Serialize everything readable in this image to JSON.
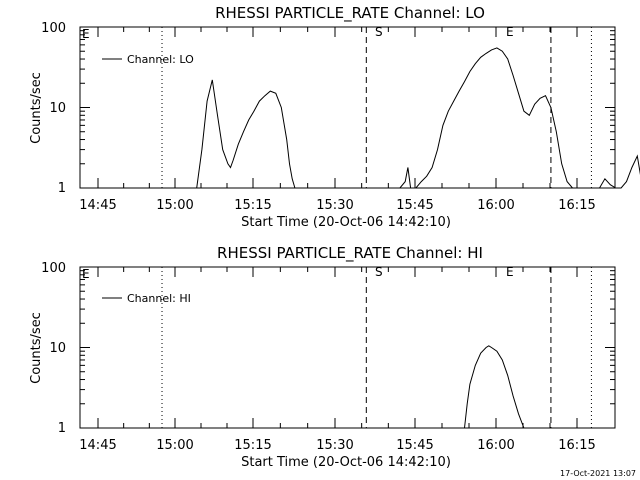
{
  "footer": {
    "timestamp": "17-Oct-2021 13:07"
  },
  "chart_data": [
    {
      "type": "line",
      "title": "RHESSI PARTICLE_RATE Channel: LO",
      "xlabel": "Start Time (20-Oct-06 14:42:10)",
      "ylabel": "Counts/sec",
      "yscale": "log",
      "ylim": [
        1,
        100
      ],
      "xlim_minutes": [
        -2.17,
        113
      ],
      "x_ticks": [
        "14:45",
        "15:00",
        "15:15",
        "15:30",
        "15:45",
        "16:00",
        "16:15"
      ],
      "y_ticks": [
        "1",
        "10",
        "100"
      ],
      "legend": {
        "position": "top-left",
        "entries": [
          "Channel: LO"
        ]
      },
      "markers": [
        {
          "label": "E",
          "minute": -2.17,
          "style": "dotted"
        },
        {
          "label": "",
          "minute": 15.3,
          "style": "dotted"
        },
        {
          "label": "S",
          "minute": 53.7,
          "style": "dashed"
        },
        {
          "label": "",
          "minute": 88,
          "style": "dashed"
        },
        {
          "label": "E",
          "minute": 95.5,
          "style": "dotted"
        },
        {
          "label": "",
          "minute": 116,
          "style": "dotted"
        }
      ],
      "series": [
        {
          "name": "Channel: LO",
          "x": [
            22.0,
            23.0,
            24.0,
            25.0,
            26.0,
            27.0,
            28.0,
            28.5,
            29.0,
            30.0,
            31.0,
            32.0,
            33.0,
            34.0,
            35.0,
            36.0,
            37.0,
            38.0,
            39.0,
            39.5,
            40.0,
            40.5,
            60.0,
            61.0,
            61.5,
            62.0,
            63.0,
            64.0,
            65.0,
            66.0,
            67.0,
            68.0,
            69.0,
            70.0,
            71.0,
            72.0,
            73.0,
            74.0,
            75.0,
            76.0,
            77.0,
            78.0,
            79.0,
            80.0,
            81.0,
            82.0,
            83.0,
            84.0,
            85.0,
            86.0,
            87.0,
            88.0,
            89.0,
            90.0,
            91.0,
            92.0,
            93.0,
            94.0,
            95.0,
            96.0,
            97.0,
            98.0,
            99.0,
            100.0,
            101.0,
            102.0,
            103.0,
            104.0,
            105.0,
            106.0,
            107.0,
            108.0,
            109.0
          ],
          "y": [
            1,
            3,
            12,
            22,
            8,
            3,
            2,
            1.8,
            2.2,
            3.5,
            5,
            7,
            9,
            12,
            14,
            16,
            15,
            10,
            4,
            2,
            1.3,
            1,
            1,
            1.2,
            1.8,
            1,
            1,
            1.2,
            1.4,
            1.8,
            3,
            6,
            9,
            12,
            16,
            21,
            28,
            35,
            42,
            47,
            52,
            55,
            50,
            40,
            25,
            15,
            9,
            8,
            11,
            13,
            14,
            10,
            5,
            2,
            1.2,
            1,
            1,
            1,
            1,
            1,
            1,
            1.3,
            1.1,
            1,
            1,
            1.2,
            1.8,
            2.5,
            1,
            5,
            8.5,
            3,
            1
          ]
        }
      ]
    },
    {
      "type": "line",
      "title": "RHESSI PARTICLE_RATE Channel: HI",
      "xlabel": "Start Time (20-Oct-06 14:42:10)",
      "ylabel": "Counts/sec",
      "yscale": "log",
      "ylim": [
        1,
        100
      ],
      "xlim_minutes": [
        -2.17,
        113
      ],
      "x_ticks": [
        "14:45",
        "15:00",
        "15:15",
        "15:30",
        "15:45",
        "16:00",
        "16:15"
      ],
      "y_ticks": [
        "1",
        "10",
        "100"
      ],
      "legend": {
        "position": "top-left",
        "entries": [
          "Channel: HI"
        ]
      },
      "markers": [
        {
          "label": "E",
          "minute": -2.17,
          "style": "dotted"
        },
        {
          "label": "",
          "minute": 15.3,
          "style": "dotted"
        },
        {
          "label": "S",
          "minute": 53.7,
          "style": "dashed"
        },
        {
          "label": "",
          "minute": 88,
          "style": "dashed"
        },
        {
          "label": "E",
          "minute": 95.5,
          "style": "dotted"
        },
        {
          "label": "",
          "minute": 116,
          "style": "dotted"
        }
      ],
      "series": [
        {
          "name": "Channel: HI",
          "x": [
            72.0,
            72.5,
            73.0,
            74.0,
            75.0,
            76.0,
            76.5,
            77.0,
            78.0,
            79.0,
            80.0,
            81.0,
            82.0,
            83.0
          ],
          "y": [
            1,
            2,
            3.5,
            6,
            8.5,
            10,
            10.5,
            10,
            9,
            7,
            4.5,
            2.5,
            1.5,
            1
          ]
        }
      ]
    }
  ]
}
